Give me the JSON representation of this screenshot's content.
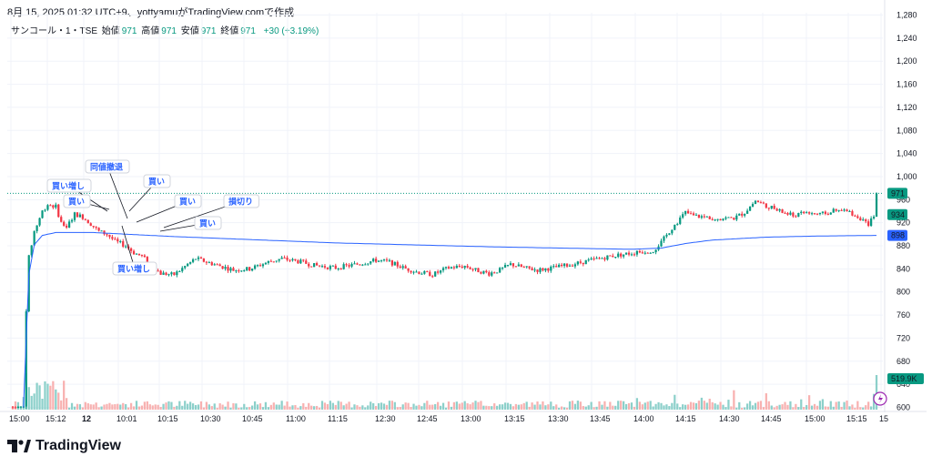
{
  "header": {
    "caption": "8月 15, 2025 01:32 UTC+9、yottyamuがTradingView.comで作成"
  },
  "legend": {
    "symbol": "サンコール・1・TSE",
    "open_label": "始値",
    "open": "971",
    "high_label": "高値",
    "high": "971",
    "low_label": "安値",
    "low": "971",
    "close_label": "終値",
    "close": "971",
    "change": "+30 (+3.19%)"
  },
  "branding": {
    "logo_text": "TradingView"
  },
  "colors": {
    "up": "#089981",
    "down": "#f23645",
    "vwap": "#2962ff",
    "grid": "#f0f3fa",
    "annotation": "#2962ff"
  },
  "chart_data": {
    "type": "candlestick",
    "yticks": [
      "600",
      "640",
      "680",
      "720",
      "760",
      "800",
      "840",
      "880",
      "920",
      "960",
      "1,000",
      "1,040",
      "1,080",
      "1,120",
      "1,160",
      "1,200",
      "1,240",
      "1,280"
    ],
    "ylim": [
      596,
      1284
    ],
    "xticks": [
      "15:00",
      "15:12",
      "12",
      "10:01",
      "10:15",
      "10:30",
      "10:45",
      "11:00",
      "11:15",
      "12:30",
      "12:45",
      "13:00",
      "13:15",
      "13:30",
      "13:45",
      "14:00",
      "14:15",
      "14:30",
      "14:45",
      "15:00",
      "15:15",
      "15"
    ],
    "price_labels": [
      {
        "label": "971",
        "value": 971,
        "kind": "last",
        "color": "#089981"
      },
      {
        "label": "934",
        "value": 934,
        "kind": "indicator",
        "color": "#089981"
      },
      {
        "label": "898",
        "value": 898,
        "kind": "vwap",
        "color": "#2962ff"
      }
    ],
    "last_price": 971,
    "volume_label": "519.9K",
    "annotations": [
      "買い増し",
      "買い",
      "同値撤退",
      "買い",
      "買い",
      "損切り",
      "買い",
      "買い増し"
    ],
    "price_path": [
      [
        0,
        600
      ],
      [
        4,
        600
      ],
      [
        5,
        770
      ],
      [
        6,
        860
      ],
      [
        8,
        905
      ],
      [
        11,
        940
      ],
      [
        13,
        952
      ],
      [
        16,
        948
      ],
      [
        18,
        920
      ],
      [
        20,
        912
      ],
      [
        23,
        935
      ],
      [
        26,
        930
      ],
      [
        29,
        918
      ],
      [
        32,
        905
      ],
      [
        35,
        900
      ],
      [
        38,
        888
      ],
      [
        42,
        880
      ],
      [
        45,
        868
      ],
      [
        48,
        862
      ],
      [
        52,
        845
      ],
      [
        55,
        832
      ],
      [
        60,
        830
      ],
      [
        65,
        848
      ],
      [
        68,
        858
      ],
      [
        72,
        852
      ],
      [
        77,
        845
      ],
      [
        82,
        838
      ],
      [
        88,
        840
      ],
      [
        95,
        852
      ],
      [
        100,
        858
      ],
      [
        107,
        852
      ],
      [
        112,
        846
      ],
      [
        120,
        842
      ],
      [
        128,
        848
      ],
      [
        135,
        855
      ],
      [
        140,
        852
      ],
      [
        145,
        842
      ],
      [
        150,
        835
      ],
      [
        156,
        830
      ],
      [
        162,
        842
      ],
      [
        168,
        845
      ],
      [
        172,
        838
      ],
      [
        177,
        832
      ],
      [
        181,
        838
      ],
      [
        185,
        848
      ],
      [
        190,
        842
      ],
      [
        195,
        838
      ],
      [
        201,
        842
      ],
      [
        208,
        848
      ],
      [
        215,
        855
      ],
      [
        222,
        862
      ],
      [
        228,
        866
      ],
      [
        234,
        870
      ],
      [
        238,
        872
      ],
      [
        241,
        886
      ],
      [
        244,
        905
      ],
      [
        247,
        922
      ],
      [
        250,
        938
      ],
      [
        253,
        932
      ],
      [
        257,
        930
      ],
      [
        262,
        928
      ],
      [
        268,
        928
      ],
      [
        272,
        938
      ],
      [
        276,
        958
      ],
      [
        280,
        950
      ],
      [
        285,
        940
      ],
      [
        290,
        932
      ],
      [
        295,
        938
      ],
      [
        300,
        934
      ],
      [
        305,
        940
      ],
      [
        310,
        940
      ],
      [
        315,
        928
      ],
      [
        318,
        914
      ],
      [
        320,
        934
      ],
      [
        321,
        971
      ]
    ],
    "vwap_path": [
      [
        4,
        600
      ],
      [
        5,
        720
      ],
      [
        6,
        830
      ],
      [
        8,
        882
      ],
      [
        11,
        898
      ],
      [
        16,
        903
      ],
      [
        30,
        903
      ],
      [
        60,
        896
      ],
      [
        120,
        885
      ],
      [
        180,
        878
      ],
      [
        230,
        874
      ],
      [
        241,
        876
      ],
      [
        250,
        884
      ],
      [
        260,
        890
      ],
      [
        280,
        895
      ],
      [
        300,
        897
      ],
      [
        321,
        898
      ]
    ]
  }
}
